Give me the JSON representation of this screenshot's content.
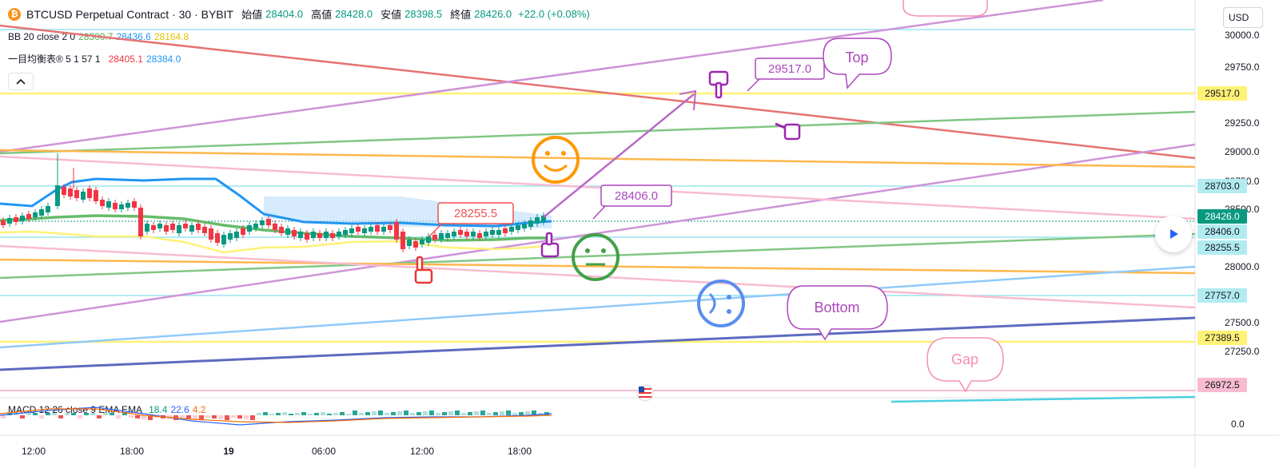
{
  "header": {
    "coin_icon": "bitcoin-icon",
    "symbol_title": "BTCUSD Perpetual Contract · 30 · BYBIT",
    "open_label": "始値",
    "open_value": "28404.0",
    "high_label": "高値",
    "high_value": "28428.0",
    "low_label": "安値",
    "low_value": "28398.5",
    "close_label": "終値",
    "close_value": "28426.0",
    "change": "+22.0 (+0.08%)"
  },
  "indicators": {
    "bb_label": "BB 20 close 2 0",
    "bb_mid": "28300.7",
    "bb_upper": "28436.6",
    "bb_lower": "28164.8",
    "ichimoku_label": "一目均衡表® 5 1 57 1",
    "ichimoku_v1": "28405.1",
    "ichimoku_v2": "28384.0",
    "macd_label": "MACD 12 26 close 9 EMA EMA",
    "macd_v1": "18.4",
    "macd_v2": "22.6",
    "macd_v3": "4.2"
  },
  "currency": "USD",
  "price_axis": {
    "ticks": [
      "30000.0",
      "29750.0",
      "29250.0",
      "29000.0",
      "28750.0",
      "28500.0",
      "28000.0",
      "27500.0",
      "27250.0"
    ],
    "macd_zero": "0.0",
    "boxes": [
      {
        "label": "29517.0",
        "bg": "#fff176",
        "fg": "#131722"
      },
      {
        "label": "28703.0",
        "bg": "#b2ebf2",
        "fg": "#131722"
      },
      {
        "label": "28426.0",
        "bg": "#089981",
        "fg": "#ffffff"
      },
      {
        "label": "28406.0",
        "bg": "#b2ebf2",
        "fg": "#131722"
      },
      {
        "label": "28255.5",
        "bg": "#b2ebf2",
        "fg": "#131722"
      },
      {
        "label": "27757.0",
        "bg": "#b2ebf2",
        "fg": "#131722"
      },
      {
        "label": "27389.5",
        "bg": "#fff176",
        "fg": "#131722"
      },
      {
        "label": "26972.5",
        "bg": "#f8bbd0",
        "fg": "#131722"
      }
    ]
  },
  "time_axis": [
    "12:00",
    "18:00",
    "19",
    "06:00",
    "12:00",
    "18:00"
  ],
  "annotations": {
    "callout_top": "Top",
    "callout_bottom": "Bottom",
    "callout_gap": "Gap",
    "price_label_1": "29517.0",
    "price_label_2": "28406.0",
    "price_label_3": "28255.5"
  },
  "icons": {
    "play": "play-icon",
    "chevron": "chevron-up-icon",
    "flag": "us-flag-icon"
  },
  "colors": {
    "up": "#089981",
    "down": "#f23645",
    "bb_upper": "#2196f3",
    "bb_mid": "#4caf50",
    "bb_lower": "#ffeb3b",
    "purple": "#9c27b0",
    "green_emoji": "#43a047",
    "orange_emoji": "#ff9800",
    "blue_emoji": "#5b8def"
  }
}
